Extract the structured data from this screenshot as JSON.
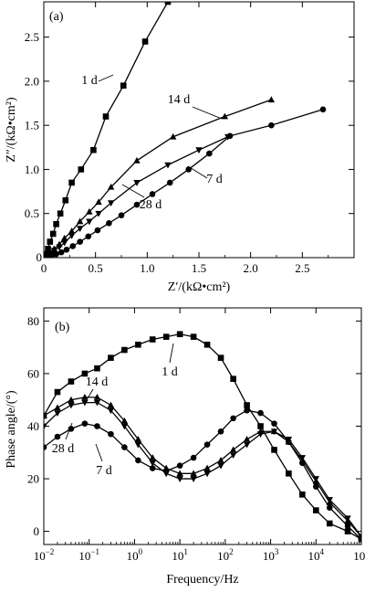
{
  "chart_data": [
    {
      "type": "line",
      "panel_label": "(a)",
      "xlabel": "Z′/(kΩ•cm²)",
      "ylabel": "Z″/(kΩ•cm²)",
      "xlim": [
        0,
        3.0
      ],
      "ylim": [
        0,
        2.9
      ],
      "xticks": [
        0,
        0.5,
        1.0,
        1.5,
        2.0,
        2.5
      ],
      "xtick_labels": [
        "0",
        "0.5",
        "1.0",
        "1.5",
        "2.0",
        "2.5"
      ],
      "yticks": [
        0.5,
        1.0,
        1.5,
        2.0,
        2.5
      ],
      "ytick_labels": [
        "0.5",
        "1.0",
        "1.5",
        "2.0",
        "2.5"
      ],
      "series": [
        {
          "name": "1 d",
          "marker": "square",
          "points": [
            [
              0.02,
              0.04
            ],
            [
              0.04,
              0.1
            ],
            [
              0.06,
              0.18
            ],
            [
              0.09,
              0.27
            ],
            [
              0.12,
              0.38
            ],
            [
              0.16,
              0.5
            ],
            [
              0.21,
              0.65
            ],
            [
              0.27,
              0.85
            ],
            [
              0.36,
              1.0
            ],
            [
              0.48,
              1.22
            ],
            [
              0.6,
              1.6
            ],
            [
              0.77,
              1.95
            ],
            [
              0.98,
              2.45
            ],
            [
              1.2,
              2.9
            ]
          ]
        },
        {
          "name": "14 d",
          "marker": "triangle-up",
          "points": [
            [
              0.01,
              0.01
            ],
            [
              0.03,
              0.03
            ],
            [
              0.06,
              0.06
            ],
            [
              0.1,
              0.1
            ],
            [
              0.15,
              0.15
            ],
            [
              0.2,
              0.22
            ],
            [
              0.27,
              0.3
            ],
            [
              0.35,
              0.41
            ],
            [
              0.44,
              0.52
            ],
            [
              0.53,
              0.63
            ],
            [
              0.65,
              0.8
            ],
            [
              0.9,
              1.1
            ],
            [
              1.25,
              1.37
            ],
            [
              1.75,
              1.6
            ],
            [
              2.2,
              1.79
            ]
          ]
        },
        {
          "name": "7 d",
          "marker": "triangle-down",
          "points": [
            [
              0.01,
              0.01
            ],
            [
              0.03,
              0.02
            ],
            [
              0.06,
              0.05
            ],
            [
              0.1,
              0.08
            ],
            [
              0.15,
              0.12
            ],
            [
              0.2,
              0.17
            ],
            [
              0.27,
              0.25
            ],
            [
              0.35,
              0.33
            ],
            [
              0.44,
              0.41
            ],
            [
              0.53,
              0.5
            ],
            [
              0.65,
              0.62
            ],
            [
              0.9,
              0.85
            ],
            [
              1.2,
              1.05
            ],
            [
              1.5,
              1.22
            ],
            [
              1.78,
              1.37
            ]
          ]
        },
        {
          "name": "28 d",
          "marker": "circle",
          "points": [
            [
              0.02,
              0.01
            ],
            [
              0.05,
              0.02
            ],
            [
              0.08,
              0.03
            ],
            [
              0.12,
              0.04
            ],
            [
              0.17,
              0.06
            ],
            [
              0.22,
              0.09
            ],
            [
              0.28,
              0.13
            ],
            [
              0.35,
              0.18
            ],
            [
              0.43,
              0.24
            ],
            [
              0.52,
              0.31
            ],
            [
              0.63,
              0.39
            ],
            [
              0.75,
              0.48
            ],
            [
              0.9,
              0.6
            ],
            [
              1.05,
              0.72
            ],
            [
              1.22,
              0.85
            ],
            [
              1.4,
              1.0
            ],
            [
              1.6,
              1.18
            ],
            [
              1.8,
              1.38
            ],
            [
              2.2,
              1.5
            ],
            [
              2.7,
              1.68
            ]
          ]
        }
      ],
      "annotations": [
        {
          "text": "1 d",
          "series": "1 d"
        },
        {
          "text": "14 d",
          "series": "14 d"
        },
        {
          "text": "7 d",
          "series": "7 d"
        },
        {
          "text": "28 d",
          "series": "28 d"
        }
      ]
    },
    {
      "type": "line",
      "panel_label": "(b)",
      "xlabel": "Frequency/Hz",
      "ylabel": "Phase angle/(°)",
      "xscale": "log",
      "xlim": [
        0.01,
        100000
      ],
      "ylim": [
        -5,
        85
      ],
      "xticks": [
        0.01,
        0.1,
        1,
        10,
        100,
        1000,
        10000,
        100000
      ],
      "xtick_labels": [
        [
          "10",
          "−2"
        ],
        [
          "10",
          "−1"
        ],
        [
          "10",
          "0"
        ],
        [
          "10",
          "1"
        ],
        [
          "10",
          "2"
        ],
        [
          "10",
          "3"
        ],
        [
          "10",
          "4"
        ],
        [
          "10",
          "5"
        ]
      ],
      "yticks": [
        0,
        20,
        40,
        60,
        80
      ],
      "ytick_labels": [
        "0",
        "20",
        "40",
        "60",
        "80"
      ],
      "series": [
        {
          "name": "1 d",
          "marker": "square",
          "points": [
            [
              0.01,
              44
            ],
            [
              0.02,
              53
            ],
            [
              0.04,
              57
            ],
            [
              0.08,
              60
            ],
            [
              0.15,
              62
            ],
            [
              0.3,
              66
            ],
            [
              0.6,
              69
            ],
            [
              1.2,
              71
            ],
            [
              2.5,
              73
            ],
            [
              5,
              74
            ],
            [
              10,
              75
            ],
            [
              20,
              74
            ],
            [
              40,
              71
            ],
            [
              80,
              66
            ],
            [
              150,
              58
            ],
            [
              300,
              48
            ],
            [
              600,
              40
            ],
            [
              1200,
              31
            ],
            [
              2500,
              22
            ],
            [
              5000,
              14
            ],
            [
              10000,
              8
            ],
            [
              20000,
              3
            ],
            [
              50000,
              0
            ],
            [
              100000,
              -3
            ]
          ]
        },
        {
          "name": "14 d",
          "marker": "triangle-up",
          "points": [
            [
              0.01,
              44
            ],
            [
              0.02,
              47
            ],
            [
              0.04,
              50
            ],
            [
              0.08,
              51
            ],
            [
              0.15,
              51
            ],
            [
              0.3,
              48
            ],
            [
              0.6,
              42
            ],
            [
              1.2,
              35
            ],
            [
              2.5,
              28
            ],
            [
              5,
              24
            ],
            [
              10,
              22
            ],
            [
              20,
              22
            ],
            [
              40,
              24
            ],
            [
              80,
              27
            ],
            [
              150,
              31
            ],
            [
              300,
              35
            ],
            [
              600,
              38
            ],
            [
              1200,
              38
            ],
            [
              2500,
              34
            ],
            [
              5000,
              27
            ],
            [
              10000,
              19
            ],
            [
              20000,
              11
            ],
            [
              50000,
              4
            ],
            [
              100000,
              -2
            ]
          ]
        },
        {
          "name": "7 d",
          "marker": "triangle-down",
          "points": [
            [
              0.01,
              40
            ],
            [
              0.02,
              45
            ],
            [
              0.04,
              48
            ],
            [
              0.08,
              49
            ],
            [
              0.15,
              49
            ],
            [
              0.3,
              46
            ],
            [
              0.6,
              40
            ],
            [
              1.2,
              33
            ],
            [
              2.5,
              26
            ],
            [
              5,
              22
            ],
            [
              10,
              20
            ],
            [
              20,
              20
            ],
            [
              40,
              22
            ],
            [
              80,
              25
            ],
            [
              150,
              29
            ],
            [
              300,
              33
            ],
            [
              600,
              37
            ],
            [
              1200,
              38
            ],
            [
              2500,
              35
            ],
            [
              5000,
              28
            ],
            [
              10000,
              20
            ],
            [
              20000,
              12
            ],
            [
              50000,
              5
            ],
            [
              100000,
              -2
            ]
          ]
        },
        {
          "name": "28 d",
          "marker": "circle",
          "points": [
            [
              0.01,
              32
            ],
            [
              0.02,
              36
            ],
            [
              0.04,
              39
            ],
            [
              0.08,
              41
            ],
            [
              0.15,
              40
            ],
            [
              0.3,
              37
            ],
            [
              0.6,
              32
            ],
            [
              1.2,
              27
            ],
            [
              2.5,
              24
            ],
            [
              5,
              23
            ],
            [
              10,
              25
            ],
            [
              20,
              28
            ],
            [
              40,
              33
            ],
            [
              80,
              38
            ],
            [
              150,
              43
            ],
            [
              300,
              46
            ],
            [
              600,
              45
            ],
            [
              1200,
              41
            ],
            [
              2500,
              34
            ],
            [
              5000,
              26
            ],
            [
              10000,
              17
            ],
            [
              20000,
              9
            ],
            [
              50000,
              2
            ],
            [
              100000,
              -3
            ]
          ]
        }
      ],
      "annotations": [
        {
          "text": "1 d",
          "series": "1 d"
        },
        {
          "text": "14 d",
          "series": "14 d"
        },
        {
          "text": "28 d",
          "series": "28 d"
        },
        {
          "text": "7 d",
          "series": "7 d"
        }
      ]
    }
  ]
}
